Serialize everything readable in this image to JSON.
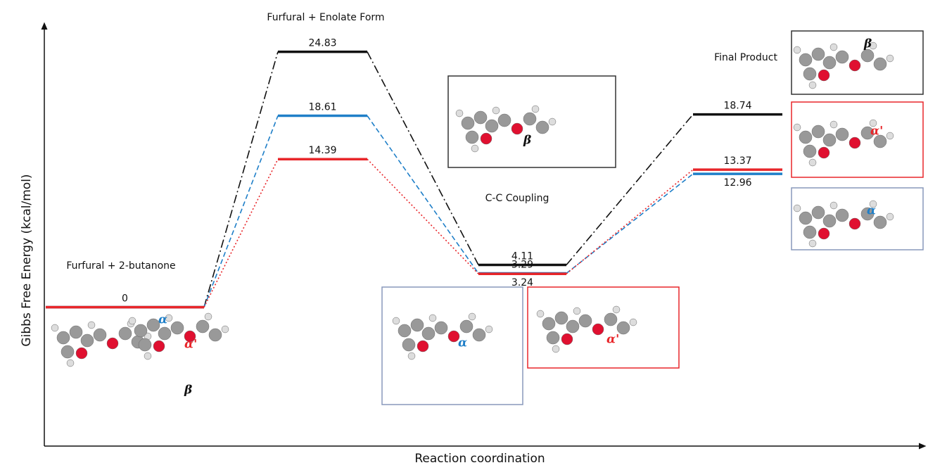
{
  "chart_data": {
    "type": "energy",
    "x_label": "Reaction coordination",
    "y_label": "Gibbs Free Energy (kcal/mol)",
    "categories": [
      "Furfural + 2-butanone",
      "Furfural + Enolate Form",
      "C-C Coupling",
      "Final Product"
    ],
    "series": [
      {
        "color": "#111111",
        "linestyle": "dashdot",
        "values": [
          0,
          24.83,
          4.11,
          18.74
        ]
      },
      {
        "color": "#1f7fc8",
        "linestyle": "dashed",
        "values": [
          0,
          18.61,
          3.29,
          12.96
        ]
      },
      {
        "color": "#e8262a",
        "linestyle": "dotted",
        "values": [
          0,
          14.39,
          3.24,
          13.37
        ]
      }
    ],
    "ylim": [
      -13.5,
      27.4
    ],
    "annotations": [
      "α",
      "α'",
      "β",
      "β",
      "α",
      "α'",
      "β",
      "α'",
      "α"
    ]
  }
}
